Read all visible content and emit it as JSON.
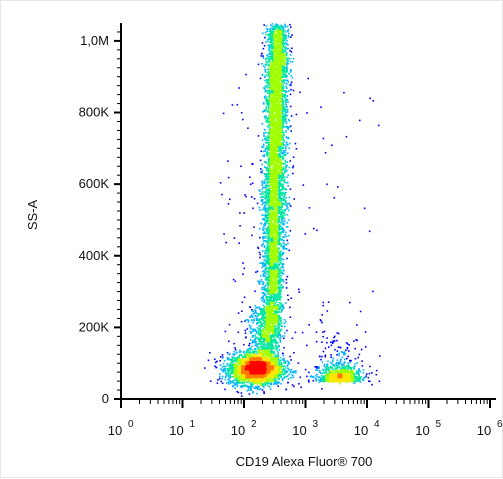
{
  "chart_data": {
    "type": "scatter",
    "title": "",
    "xlabel": "CD19 Alexa Fluor® 700",
    "ylabel": "SS-A",
    "x_scale": "log",
    "xlim": [
      1,
      1000000
    ],
    "ylim": [
      0,
      1050000
    ],
    "y_ticks": [
      {
        "value": 0,
        "label": "0"
      },
      {
        "value": 200000,
        "label": "200K"
      },
      {
        "value": 400000,
        "label": "400K"
      },
      {
        "value": 600000,
        "label": "600K"
      },
      {
        "value": 800000,
        "label": "800K"
      },
      {
        "value": 1000000,
        "label": "1,0M"
      }
    ],
    "x_ticks": [
      {
        "value": 1,
        "base": "10",
        "exp": "0"
      },
      {
        "value": 10,
        "base": "10",
        "exp": "1"
      },
      {
        "value": 100,
        "base": "10",
        "exp": "2"
      },
      {
        "value": 1000,
        "base": "10",
        "exp": "3"
      },
      {
        "value": 10000,
        "base": "10",
        "exp": "4"
      },
      {
        "value": 100000,
        "base": "10",
        "exp": "5"
      },
      {
        "value": 1000000,
        "base": "10",
        "exp": "6"
      }
    ],
    "color_map": "density (blue-cyan-green-yellow-red)",
    "colors": [
      "#0000ff",
      "#00b4ff",
      "#00e6a0",
      "#a0ff00",
      "#ffe600",
      "#ff7a00",
      "#ff0000"
    ],
    "populations": [
      {
        "name": "",
        "x_center": 150,
        "y_center": 85000,
        "note": "dense CD19-dim cluster, highest density"
      },
      {
        "name": "",
        "x_center": 280,
        "y_from": 150000,
        "y_to": 1040000,
        "note": "elongated high side-scatter population"
      },
      {
        "name": "",
        "x_center": 3500,
        "y_center": 60000,
        "note": "CD19-positive cluster"
      }
    ],
    "grid": false,
    "legend": "none"
  }
}
